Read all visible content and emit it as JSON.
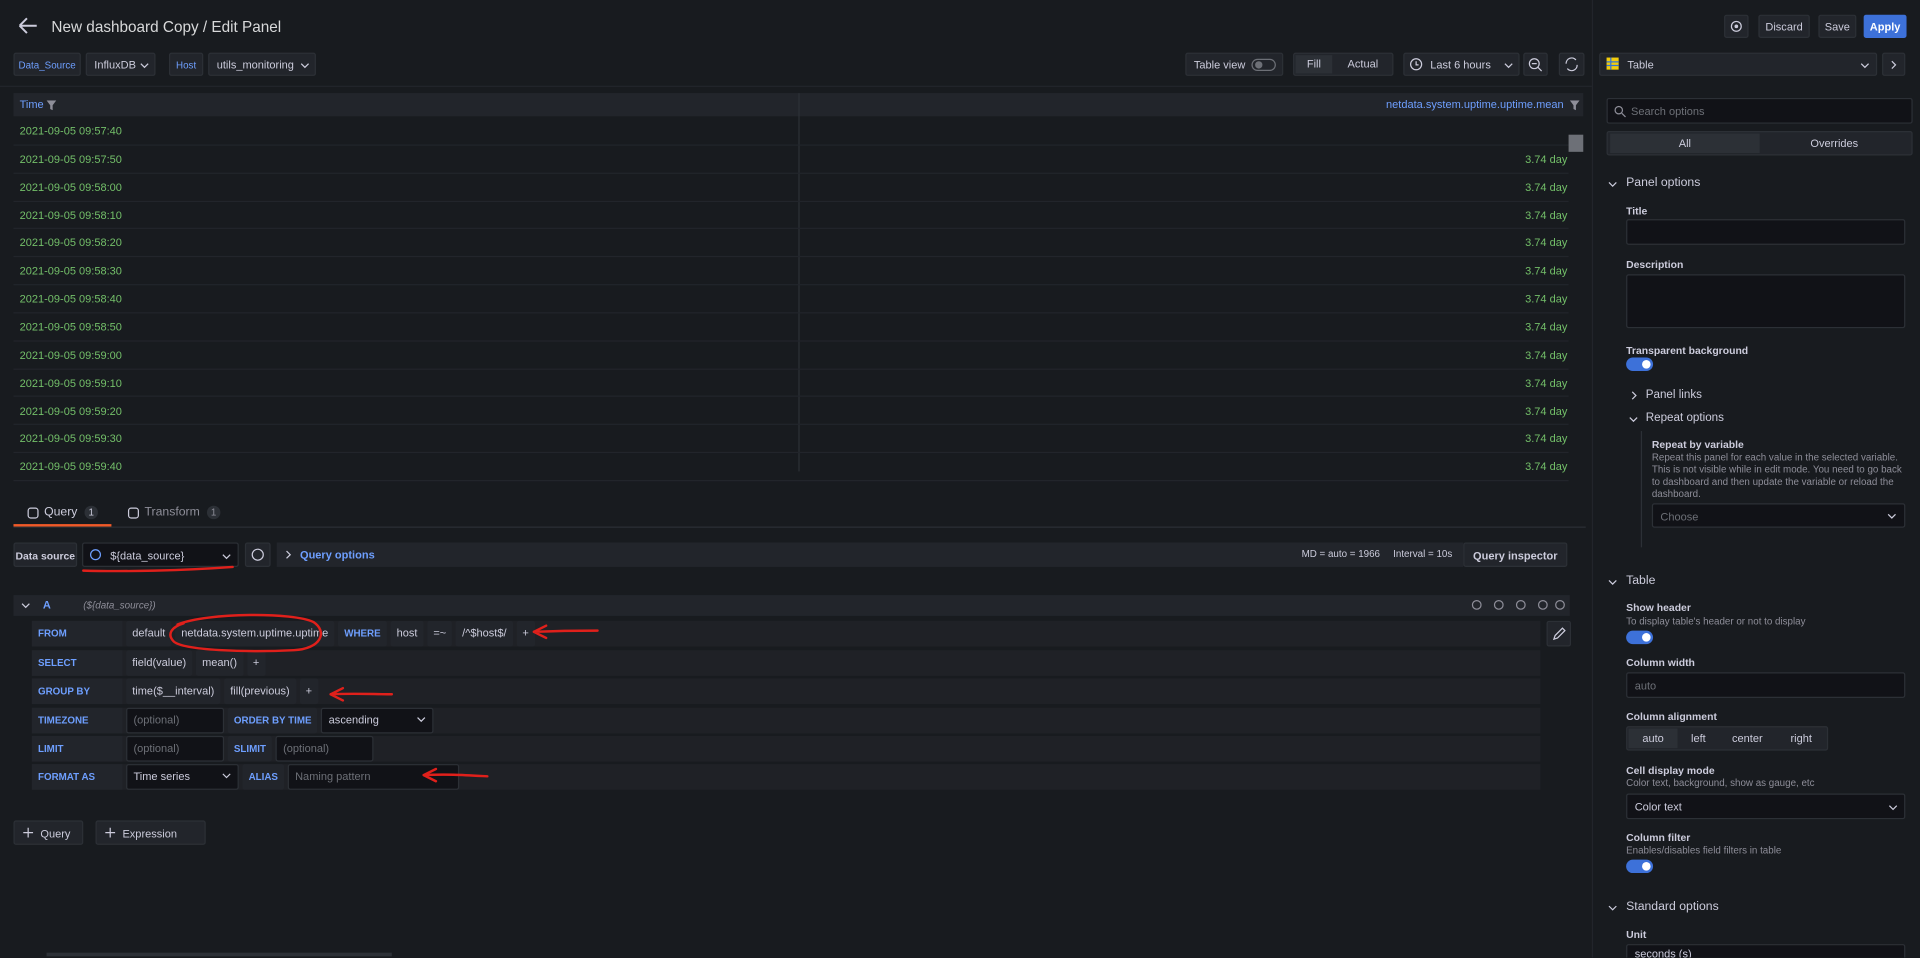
{
  "header": {
    "title": "New dashboard Copy / Edit Panel",
    "discard": "Discard",
    "save": "Save",
    "apply": "Apply"
  },
  "variables": [
    {
      "label": "Data_Source",
      "value": "InfluxDB"
    },
    {
      "label": "Host",
      "value": "utils_monitoring"
    }
  ],
  "toolbar": {
    "table_view": "Table view",
    "fill": "Fill",
    "actual": "Actual",
    "time_range": "Last 6 hours"
  },
  "viz": "Table",
  "table": {
    "columns": [
      "Time",
      "netdata.system.uptime.uptime.mean"
    ],
    "rows": [
      [
        "2021-09-05 09:57:40",
        null
      ],
      [
        "2021-09-05 09:57:50",
        "3.74 day"
      ],
      [
        "2021-09-05 09:58:00",
        "3.74 day"
      ],
      [
        "2021-09-05 09:58:10",
        "3.74 day"
      ],
      [
        "2021-09-05 09:58:20",
        "3.74 day"
      ],
      [
        "2021-09-05 09:58:30",
        "3.74 day"
      ],
      [
        "2021-09-05 09:58:40",
        "3.74 day"
      ],
      [
        "2021-09-05 09:58:50",
        "3.74 day"
      ],
      [
        "2021-09-05 09:59:00",
        "3.74 day"
      ],
      [
        "2021-09-05 09:59:10",
        "3.74 day"
      ],
      [
        "2021-09-05 09:59:20",
        "3.74 day"
      ],
      [
        "2021-09-05 09:59:30",
        "3.74 day"
      ],
      [
        "2021-09-05 09:59:40",
        "3.74 day"
      ]
    ]
  },
  "query_tabs": [
    {
      "label": "Query",
      "count": 1
    },
    {
      "label": "Transform",
      "count": 1
    }
  ],
  "datasource_row": {
    "label": "Data source",
    "value": "${data_source}",
    "query_options": "Query options",
    "md": "MD = auto = 1966",
    "interval": "Interval = 10s",
    "inspector": "Query inspector"
  },
  "query": {
    "ref": "A",
    "datasource": "(${data_source})",
    "rows": [
      {
        "label": "FROM",
        "parts": [
          {
            "text": "default",
            "kind": "segment"
          },
          {
            "text": "netdata.system.uptime.uptime",
            "kind": "segment"
          },
          {
            "text": "WHERE",
            "kind": "keyword"
          },
          {
            "text": "host",
            "kind": "segment"
          },
          {
            "text": "=~",
            "kind": "segment"
          },
          {
            "text": "/^$host$/",
            "kind": "segment"
          },
          {
            "text": "+",
            "kind": "segment"
          }
        ]
      },
      {
        "label": "SELECT",
        "parts": [
          {
            "text": "field(value)",
            "kind": "segment"
          },
          {
            "text": "mean()",
            "kind": "segment"
          },
          {
            "text": "+",
            "kind": "segment"
          }
        ]
      },
      {
        "label": "GROUP BY",
        "parts": [
          {
            "text": "time($__interval)",
            "kind": "segment"
          },
          {
            "text": "fill(previous)",
            "kind": "segment"
          },
          {
            "text": "+",
            "kind": "segment"
          }
        ]
      },
      {
        "label": "TIMEZONE",
        "parts": [
          {
            "text": "(optional)",
            "kind": "placeholder"
          },
          {
            "text": "ORDER BY TIME",
            "kind": "keyword"
          },
          {
            "text": "ascending",
            "kind": "select"
          }
        ]
      },
      {
        "label": "LIMIT",
        "parts": [
          {
            "text": "(optional)",
            "kind": "placeholder"
          },
          {
            "text": "SLIMIT",
            "kind": "keyword"
          },
          {
            "text": "(optional)",
            "kind": "placeholder"
          }
        ]
      },
      {
        "label": "FORMAT AS",
        "parts": [
          {
            "text": "Time series",
            "kind": "select"
          },
          {
            "text": "ALIAS",
            "kind": "keyword"
          },
          {
            "text": "Naming pattern",
            "kind": "placeholder"
          }
        ]
      }
    ]
  },
  "add_buttons": [
    "Query",
    "Expression"
  ],
  "options": {
    "search": "Search options",
    "tabs": [
      "All",
      "Overrides"
    ],
    "panel_options": {
      "heading": "Panel options",
      "title": "Title",
      "description": "Description",
      "transparent": "Transparent background",
      "panel_links": "Panel links",
      "repeat_options": "Repeat options",
      "repeat_by": "Repeat by variable",
      "repeat_desc": "Repeat this panel for each value in the selected variable. This is not visible while in edit mode. You need to go back to dashboard and then update the variable or reload the dashboard.",
      "choose": "Choose"
    },
    "table": {
      "heading": "Table",
      "show_header": "Show header",
      "show_header_desc": "To display table's header or not to display",
      "column_width": "Column width",
      "column_width_placeholder": "auto",
      "column_alignment": "Column alignment",
      "alignments": [
        "auto",
        "left",
        "center",
        "right"
      ],
      "cell_display_mode": "Cell display mode",
      "cell_display_desc": "Color text, background, show as gauge, etc",
      "cell_display_value": "Color text",
      "column_filter": "Column filter",
      "column_filter_desc": "Enables/disables field filters in table"
    },
    "standard": {
      "heading": "Standard options",
      "unit": "Unit",
      "unit_value": "seconds (s)"
    }
  }
}
